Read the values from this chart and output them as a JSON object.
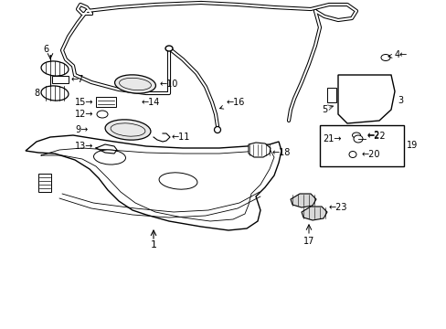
{
  "bg_color": "#ffffff",
  "fig_width": 4.89,
  "fig_height": 3.6,
  "dpi": 100,
  "lc": "#000000",
  "fs": 7.0
}
